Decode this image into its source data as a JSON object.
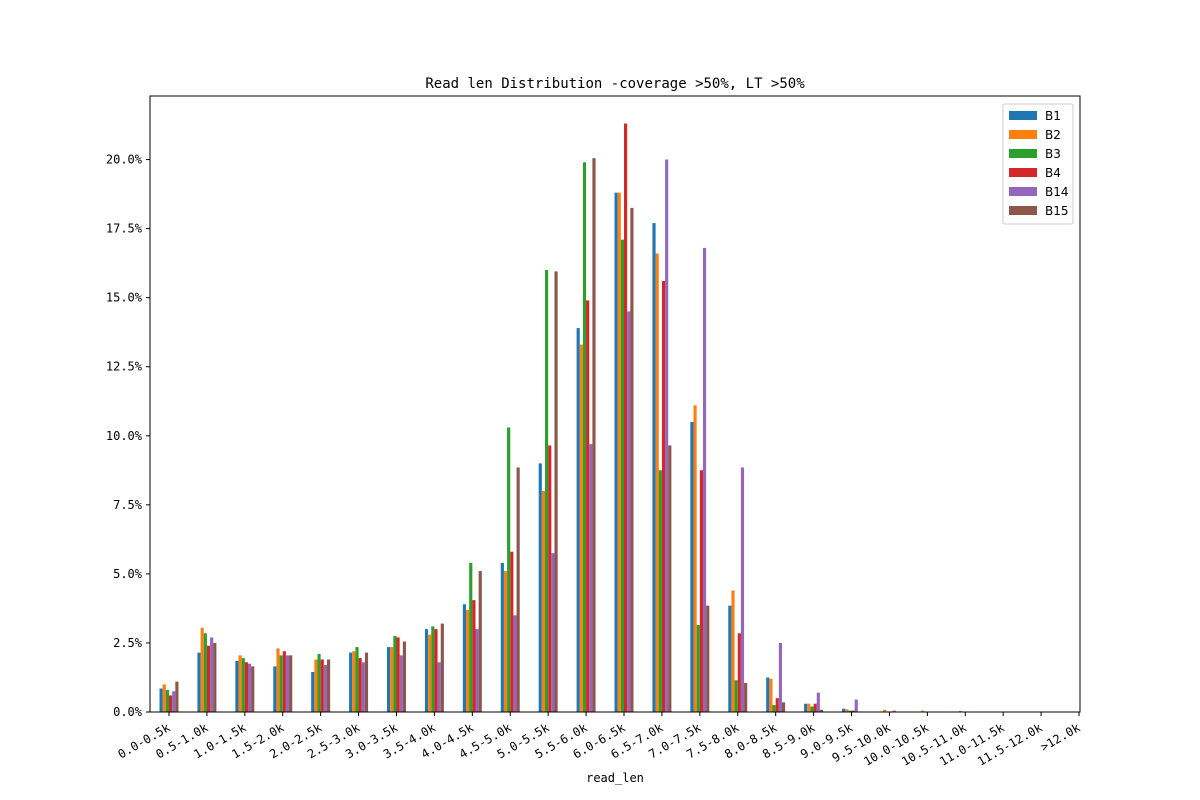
{
  "chart_data": {
    "type": "bar",
    "title": "Read len Distribution -coverage >50%, LT >50%",
    "xlabel": "read_len",
    "ylabel": "",
    "ylim": [
      0,
      22.3
    ],
    "yticks": [
      "0.0%",
      "2.5%",
      "5.0%",
      "7.5%",
      "10.0%",
      "12.5%",
      "15.0%",
      "17.5%",
      "20.0%"
    ],
    "y_unit": "%",
    "legend_position": "top-right",
    "grid": false,
    "categories": [
      "0.0-0.5k",
      "0.5-1.0k",
      "1.0-1.5k",
      "1.5-2.0k",
      "2.0-2.5k",
      "2.5-3.0k",
      "3.0-3.5k",
      "3.5-4.0k",
      "4.0-4.5k",
      "4.5-5.0k",
      "5.0-5.5k",
      "5.5-6.0k",
      "6.0-6.5k",
      "6.5-7.0k",
      "7.0-7.5k",
      "7.5-8.0k",
      "8.0-8.5k",
      "8.5-9.0k",
      "9.0-9.5k",
      "9.5-10.0k",
      "10.0-10.5k",
      "10.5-11.0k",
      "11.0-11.5k",
      "11.5-12.0k",
      ">12.0k"
    ],
    "series": [
      {
        "name": "B1",
        "color": "#1f77b4",
        "values": [
          0.85,
          2.15,
          1.85,
          1.65,
          1.45,
          2.15,
          2.35,
          3.0,
          3.9,
          5.4,
          9.0,
          13.9,
          18.8,
          17.7,
          10.5,
          3.85,
          1.25,
          0.3,
          0.12,
          0.02,
          0.01,
          0.0,
          0.0,
          0.0,
          0.0
        ]
      },
      {
        "name": "B2",
        "color": "#ff7f0e",
        "values": [
          1.0,
          3.05,
          2.05,
          2.3,
          1.9,
          2.2,
          2.35,
          2.8,
          3.7,
          5.1,
          8.0,
          13.3,
          18.8,
          16.6,
          11.1,
          4.4,
          1.2,
          0.3,
          0.1,
          0.08,
          0.05,
          0.04,
          0.0,
          0.0,
          0.0
        ]
      },
      {
        "name": "B3",
        "color": "#2ca02c",
        "values": [
          0.8,
          2.85,
          1.95,
          2.05,
          2.1,
          2.35,
          2.75,
          3.1,
          5.4,
          10.3,
          16.0,
          19.9,
          17.1,
          8.75,
          3.15,
          1.15,
          0.25,
          0.2,
          0.05,
          0.02,
          0.0,
          0.0,
          0.0,
          0.0,
          0.0
        ]
      },
      {
        "name": "B4",
        "color": "#d62728",
        "values": [
          0.6,
          2.4,
          1.8,
          2.2,
          1.9,
          1.95,
          2.7,
          3.0,
          4.05,
          5.8,
          9.65,
          14.9,
          21.3,
          15.6,
          8.75,
          2.85,
          0.5,
          0.3,
          0.05,
          0.02,
          0.0,
          0.0,
          0.0,
          0.0,
          0.0
        ]
      },
      {
        "name": "B14",
        "color": "#9467bd",
        "values": [
          0.75,
          2.7,
          1.75,
          2.05,
          1.7,
          1.8,
          2.05,
          1.8,
          3.0,
          3.5,
          5.75,
          9.7,
          14.5,
          20.0,
          16.8,
          8.85,
          2.5,
          0.7,
          0.45,
          0.05,
          0.0,
          0.0,
          0.0,
          0.0,
          0.0
        ]
      },
      {
        "name": "B15",
        "color": "#8c564b",
        "values": [
          1.1,
          2.5,
          1.65,
          2.05,
          1.9,
          2.15,
          2.55,
          3.2,
          5.1,
          8.85,
          15.95,
          20.05,
          18.25,
          9.65,
          3.85,
          1.05,
          0.35,
          0.08,
          0.02,
          0.0,
          0.0,
          0.0,
          0.0,
          0.0,
          0.0
        ]
      }
    ]
  }
}
